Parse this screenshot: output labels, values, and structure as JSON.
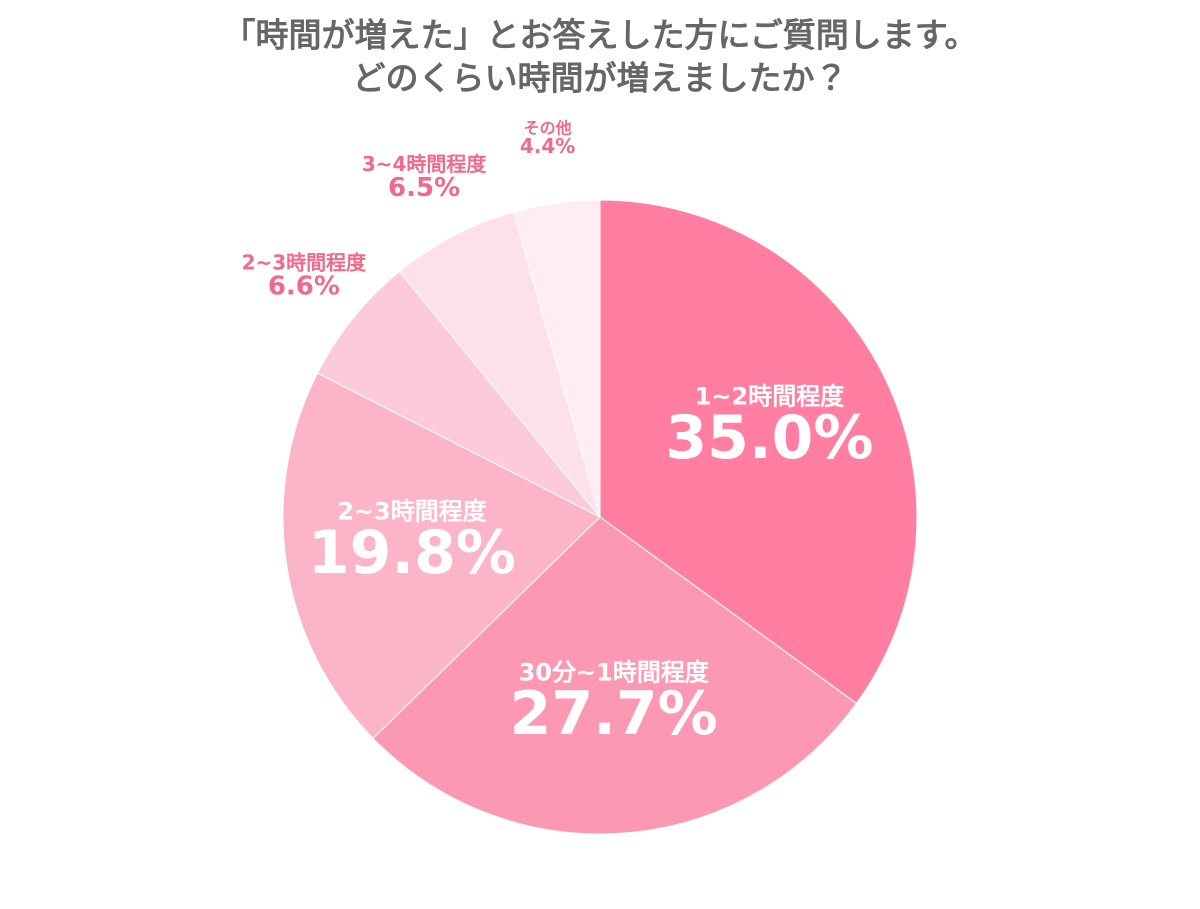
{
  "chart_data": {
    "type": "pie",
    "title": "「時間が増えた」とお答えした方にご質問します。",
    "subtitle": "どのくらい時間が増えましたか？",
    "categories": [
      "1~2時間程度",
      "30分~1時間程度",
      "2~3時間程度",
      "2~3時間程度",
      "3~4時間程度",
      "その他"
    ],
    "values": [
      35.0,
      27.7,
      19.8,
      6.6,
      6.5,
      4.4
    ],
    "value_labels": [
      "35.0%",
      "27.7%",
      "19.8%",
      "6.6%",
      "6.5%",
      "4.4%"
    ],
    "colors": [
      "#ff7ea2",
      "#fd98b4",
      "#fcb4c9",
      "#fccbd9",
      "#fde0e8",
      "#feeef3"
    ]
  }
}
